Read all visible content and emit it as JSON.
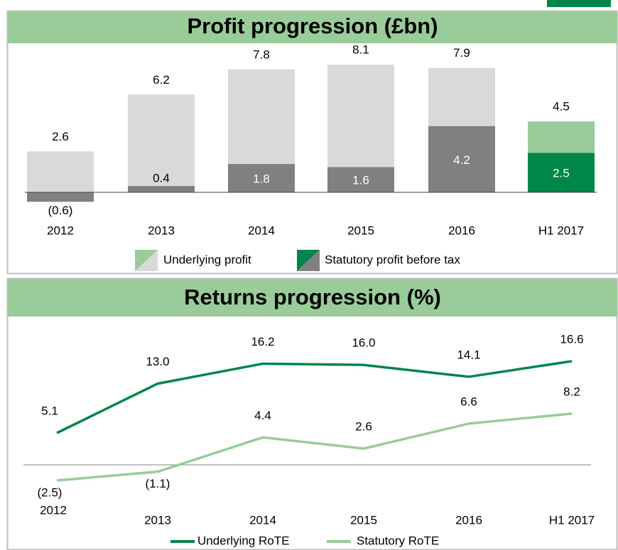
{
  "chart_data": [
    {
      "type": "bar",
      "title": "Profit progression (£bn)",
      "categories": [
        "2012",
        "2013",
        "2014",
        "2015",
        "2016",
        "H1 2017"
      ],
      "series": [
        {
          "name": "Underlying profit",
          "colors": [
            "#d9d9d9",
            "#d9d9d9",
            "#d9d9d9",
            "#d9d9d9",
            "#d9d9d9",
            "#99cc99"
          ],
          "values": [
            2.6,
            6.2,
            7.8,
            8.1,
            7.9,
            4.5
          ]
        },
        {
          "name": "Statutory profit before tax",
          "colors": [
            "#808080",
            "#808080",
            "#808080",
            "#808080",
            "#808080",
            "#00864b"
          ],
          "values": [
            -0.6,
            0.4,
            1.8,
            1.6,
            4.2,
            2.5
          ],
          "value_labels": [
            "(0.6)",
            "0.4",
            "1.8",
            "1.6",
            "4.2",
            "2.5"
          ]
        }
      ]
    },
    {
      "type": "line",
      "title": "Returns progression (%)",
      "categories": [
        "2012",
        "2013",
        "2014",
        "2015",
        "2016",
        "H1 2017"
      ],
      "series": [
        {
          "name": "Underlying RoTE",
          "color": "#00864b",
          "values": [
            5.1,
            13.0,
            16.2,
            16.0,
            14.1,
            16.6
          ],
          "value_labels": [
            "5.1",
            "13.0",
            "16.2",
            "16.0",
            "14.1",
            "16.6"
          ]
        },
        {
          "name": "Statutory RoTE",
          "color": "#99cc99",
          "values": [
            -2.5,
            -1.1,
            4.4,
            2.6,
            6.6,
            8.2
          ],
          "value_labels": [
            "(2.5)",
            "(1.1)",
            "4.4",
            "2.6",
            "6.6",
            "8.2"
          ]
        }
      ]
    }
  ]
}
